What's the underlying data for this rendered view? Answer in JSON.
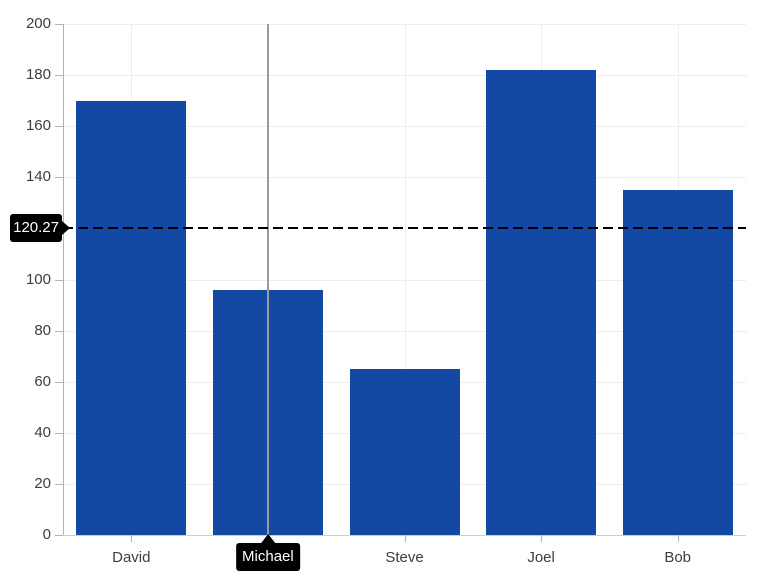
{
  "chart_data": {
    "type": "bar",
    "categories": [
      "David",
      "Michael",
      "Steve",
      "Joel",
      "Bob"
    ],
    "values": [
      170,
      96,
      65,
      182,
      135
    ],
    "title": "",
    "xlabel": "",
    "ylabel": "",
    "ylim": [
      0,
      200
    ],
    "y_ticks_visible": [
      0,
      20,
      40,
      60,
      80,
      100,
      140,
      160,
      180,
      200
    ],
    "y_tick_labels_visible": [
      "0",
      "20",
      "40",
      "60",
      "80",
      "100",
      "140",
      "160",
      "180",
      "200"
    ],
    "hidden_y_tick": 120,
    "grid": true,
    "legend": "none",
    "bar_color": "#1349a4",
    "reference_line": {
      "value": 120.27,
      "label": "120.27",
      "style": "dashed",
      "color": "#000000"
    },
    "crosshair": {
      "category": "Michael",
      "category_index": 1,
      "tooltip_label": "Michael",
      "line_color": "#9b9b9b"
    }
  },
  "colors": {
    "background": "#ffffff",
    "bar": "#1349a4",
    "gridline": "#ededed",
    "axis_label": "#3d3d3d",
    "callout_bg": "#000000",
    "callout_text": "#ffffff"
  }
}
